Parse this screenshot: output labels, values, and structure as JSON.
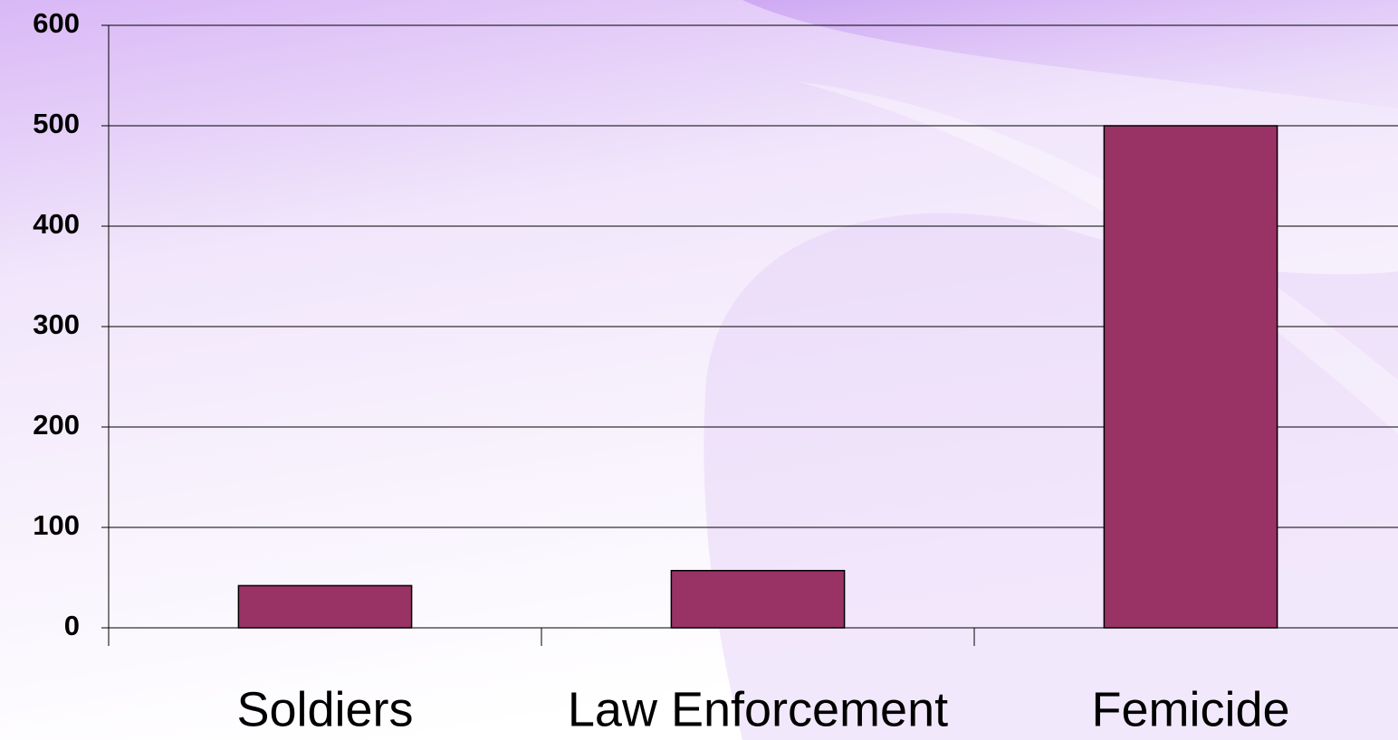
{
  "chart_data": {
    "type": "bar",
    "categories": [
      "Soldiers",
      "Law Enforcement",
      "Femicide"
    ],
    "values": [
      42,
      57,
      500
    ],
    "color": "#993366",
    "ylim": [
      0,
      600
    ],
    "yticks": [
      0,
      100,
      200,
      300,
      400,
      500,
      600
    ],
    "grid": true
  }
}
